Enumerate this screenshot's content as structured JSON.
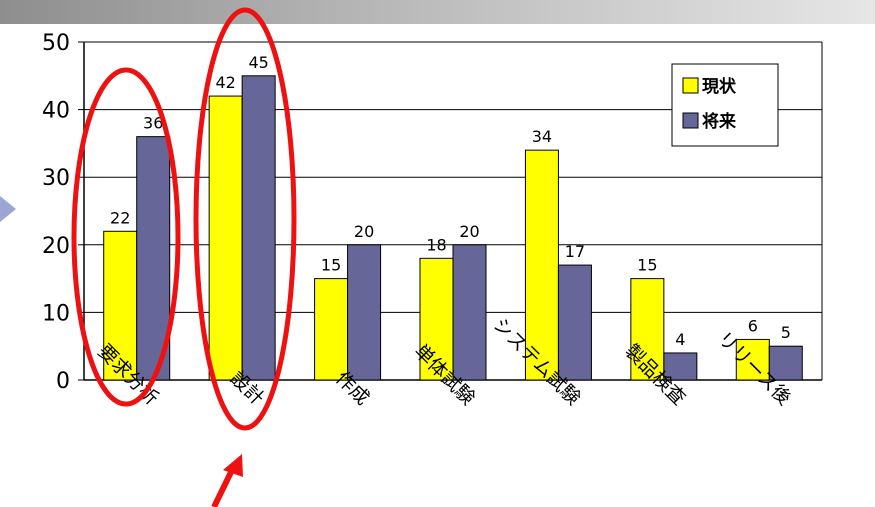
{
  "chart_data": {
    "type": "bar",
    "categories": [
      "要求分析",
      "設計",
      "作成",
      "単体試験",
      "システム試験",
      "製品検査",
      "リリース後"
    ],
    "series": [
      {
        "name": "現状",
        "values": [
          22,
          42,
          15,
          18,
          34,
          15,
          6
        ],
        "color": "#ffff00"
      },
      {
        "name": "将来",
        "values": [
          36,
          45,
          20,
          20,
          17,
          4,
          5
        ],
        "color": "#666699"
      }
    ],
    "ylim": [
      0,
      50
    ],
    "yticks": [
      0,
      10,
      20,
      30,
      40,
      50
    ],
    "grid": true,
    "legend": "top-right"
  },
  "annotation_colors": {
    "ellipse": "#ee1111",
    "arrow": "#ee1111"
  }
}
